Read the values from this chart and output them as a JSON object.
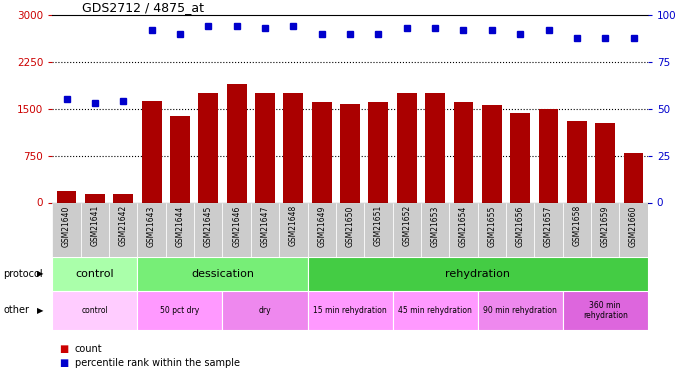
{
  "title": "GDS2712 / 4875_at",
  "samples": [
    "GSM21640",
    "GSM21641",
    "GSM21642",
    "GSM21643",
    "GSM21644",
    "GSM21645",
    "GSM21646",
    "GSM21647",
    "GSM21648",
    "GSM21649",
    "GSM21650",
    "GSM21651",
    "GSM21652",
    "GSM21653",
    "GSM21654",
    "GSM21655",
    "GSM21656",
    "GSM21657",
    "GSM21658",
    "GSM21659",
    "GSM21660"
  ],
  "bar_values": [
    180,
    130,
    140,
    1620,
    1390,
    1750,
    1900,
    1750,
    1750,
    1610,
    1570,
    1610,
    1750,
    1750,
    1610,
    1560,
    1440,
    1500,
    1300,
    1280,
    800
  ],
  "dot_values": [
    55,
    53,
    54,
    92,
    90,
    94,
    94,
    93,
    94,
    90,
    90,
    90,
    93,
    93,
    92,
    92,
    90,
    92,
    88,
    88,
    88
  ],
  "bar_color": "#aa0000",
  "dot_color": "#0000cc",
  "ylim_left": [
    0,
    3000
  ],
  "ylim_right": [
    0,
    100
  ],
  "yticks_left": [
    0,
    750,
    1500,
    2250,
    3000
  ],
  "yticks_right": [
    0,
    25,
    50,
    75,
    100
  ],
  "protocol_groups": [
    {
      "label": "control",
      "start": 0,
      "end": 3,
      "color": "#aaffaa"
    },
    {
      "label": "dessication",
      "start": 3,
      "end": 9,
      "color": "#77ee77"
    },
    {
      "label": "rehydration",
      "start": 9,
      "end": 21,
      "color": "#44cc44"
    }
  ],
  "other_groups": [
    {
      "label": "control",
      "start": 0,
      "end": 3,
      "color": "#ffccff"
    },
    {
      "label": "50 pct dry",
      "start": 3,
      "end": 6,
      "color": "#ff99ff"
    },
    {
      "label": "dry",
      "start": 6,
      "end": 9,
      "color": "#ee88ee"
    },
    {
      "label": "15 min rehydration",
      "start": 9,
      "end": 12,
      "color": "#ff99ff"
    },
    {
      "label": "45 min rehydration",
      "start": 12,
      "end": 15,
      "color": "#ff99ff"
    },
    {
      "label": "90 min rehydration",
      "start": 15,
      "end": 18,
      "color": "#ee88ee"
    },
    {
      "label": "360 min\nrehydration",
      "start": 18,
      "end": 21,
      "color": "#dd66dd"
    }
  ],
  "protocol_label": "protocol",
  "other_label": "other",
  "legend_count_color": "#cc0000",
  "legend_dot_color": "#0000cc",
  "bg_color": "#ffffff",
  "tick_color_left": "#cc0000",
  "tick_color_right": "#0000cc",
  "xtick_bg_color": "#cccccc"
}
